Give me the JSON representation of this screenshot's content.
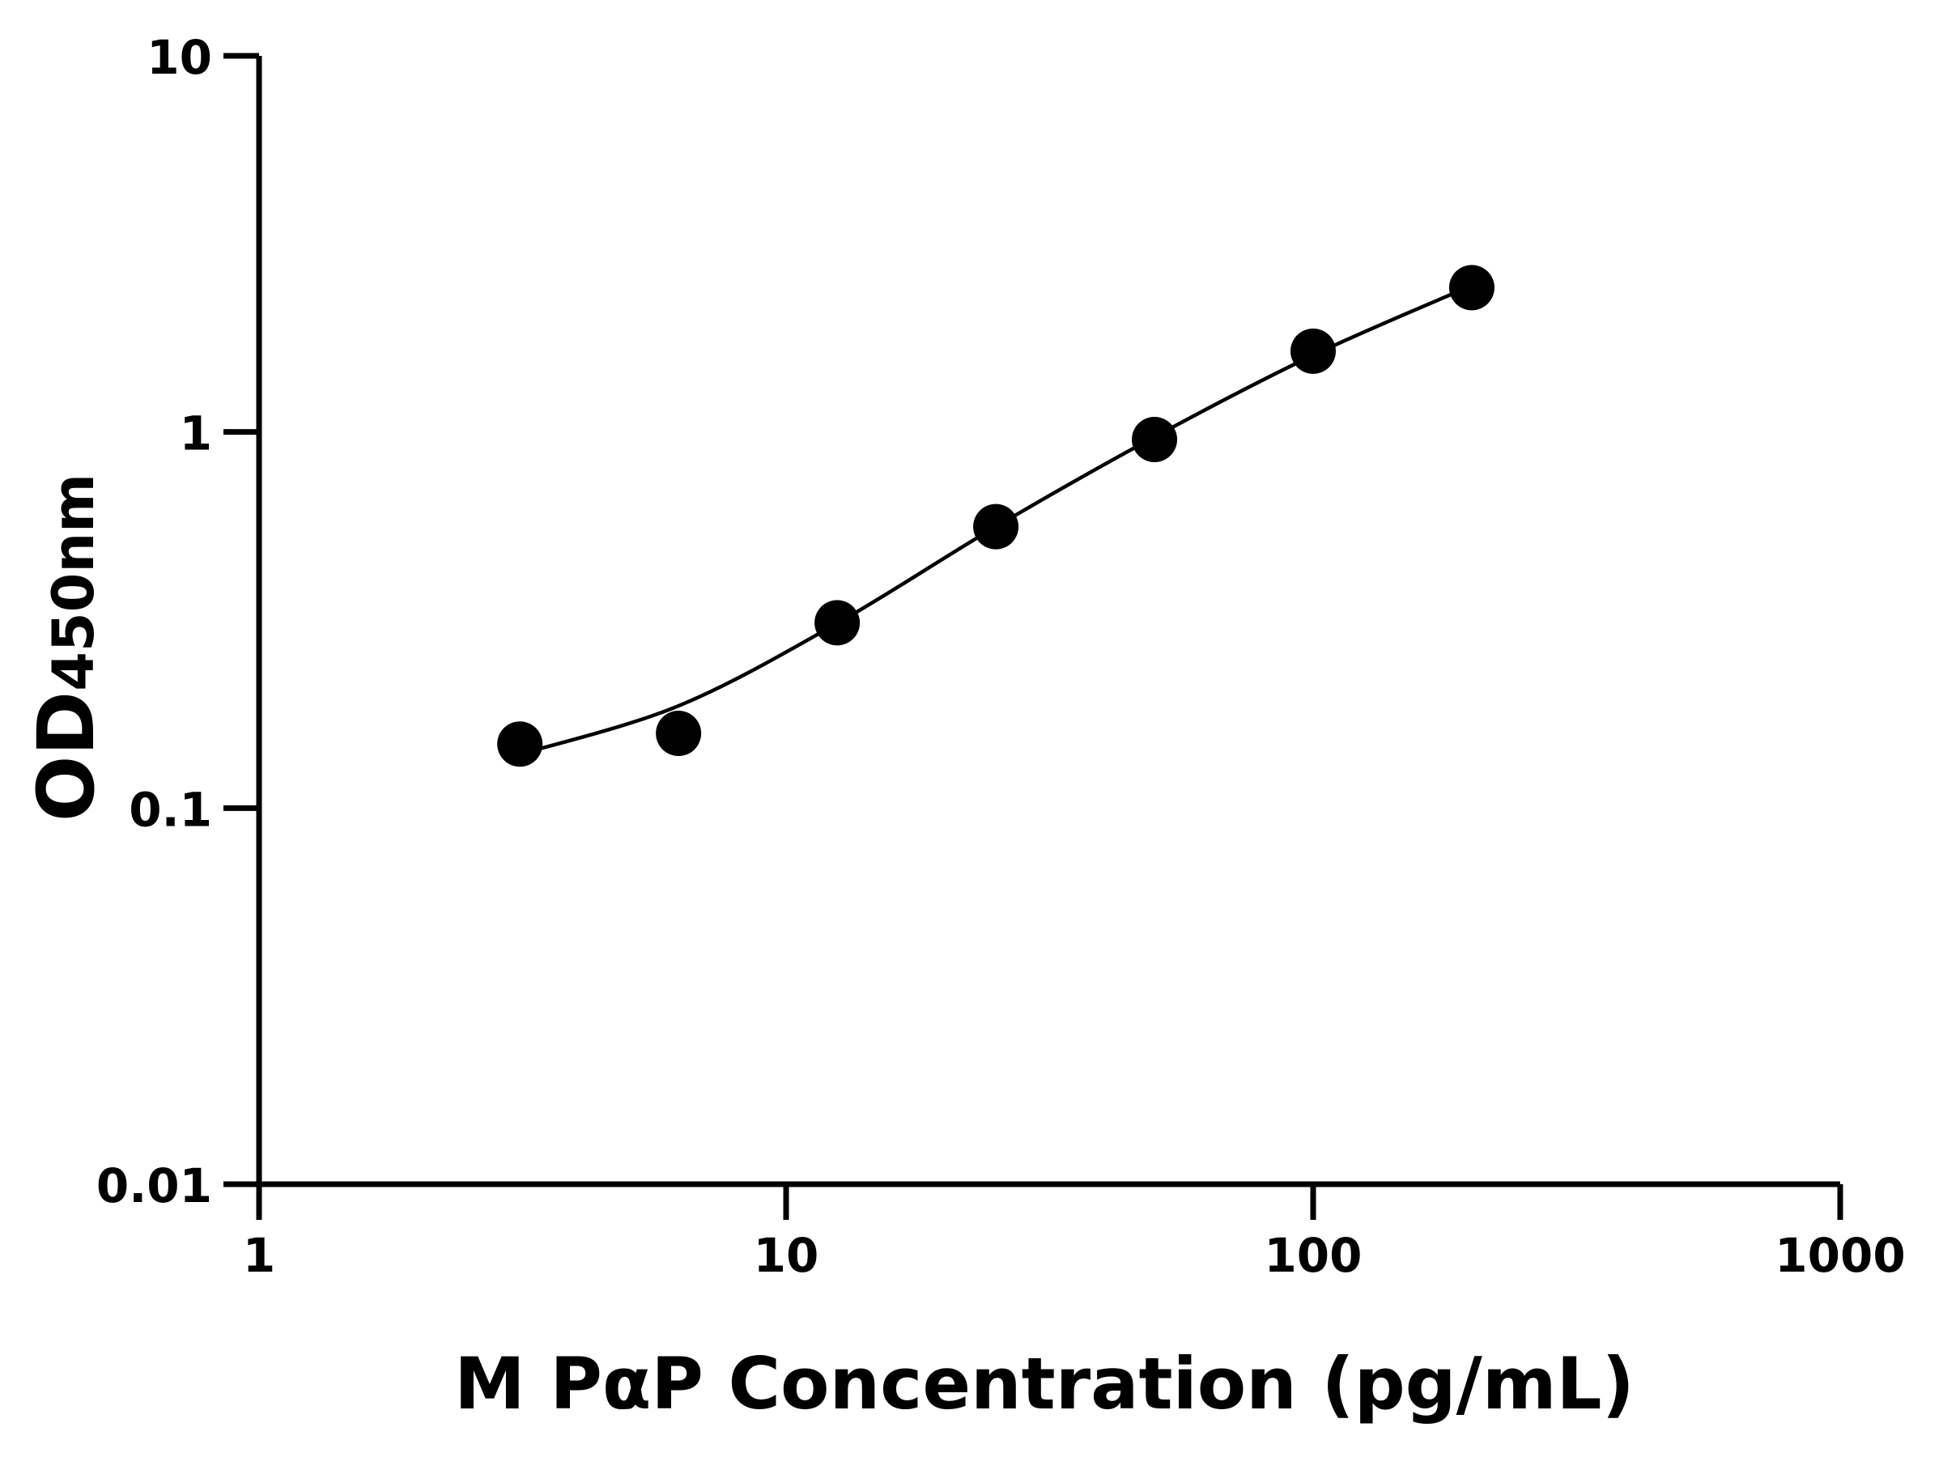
{
  "chart_data": {
    "type": "scatter",
    "xlabel": "M PαP Concentration (pg/mL)",
    "ylabel_main": "OD",
    "ylabel_sub": "450nm",
    "x_scale": "log",
    "y_scale": "log",
    "xlim": [
      1,
      1000
    ],
    "ylim": [
      0.01,
      10
    ],
    "x_ticks": [
      1,
      10,
      100,
      1000
    ],
    "x_tick_labels": [
      "1",
      "10",
      "100",
      "1000"
    ],
    "y_ticks": [
      0.01,
      0.1,
      1,
      10
    ],
    "y_tick_labels": [
      "0.01",
      "0.1",
      "1",
      "10"
    ],
    "grid": false,
    "points": {
      "x": [
        3.125,
        6.25,
        12.5,
        25,
        50,
        100,
        200
      ],
      "y": [
        0.148,
        0.158,
        0.311,
        0.56,
        0.955,
        1.64,
        2.42
      ]
    },
    "fit_curve": {
      "x": [
        3.125,
        6.25,
        12.5,
        25,
        50,
        100,
        200
      ],
      "y": [
        0.139,
        0.187,
        0.31,
        0.56,
        0.97,
        1.6,
        2.45
      ]
    },
    "colors": {
      "points": "#000000",
      "line": "#000000",
      "axes": "#000000"
    }
  }
}
